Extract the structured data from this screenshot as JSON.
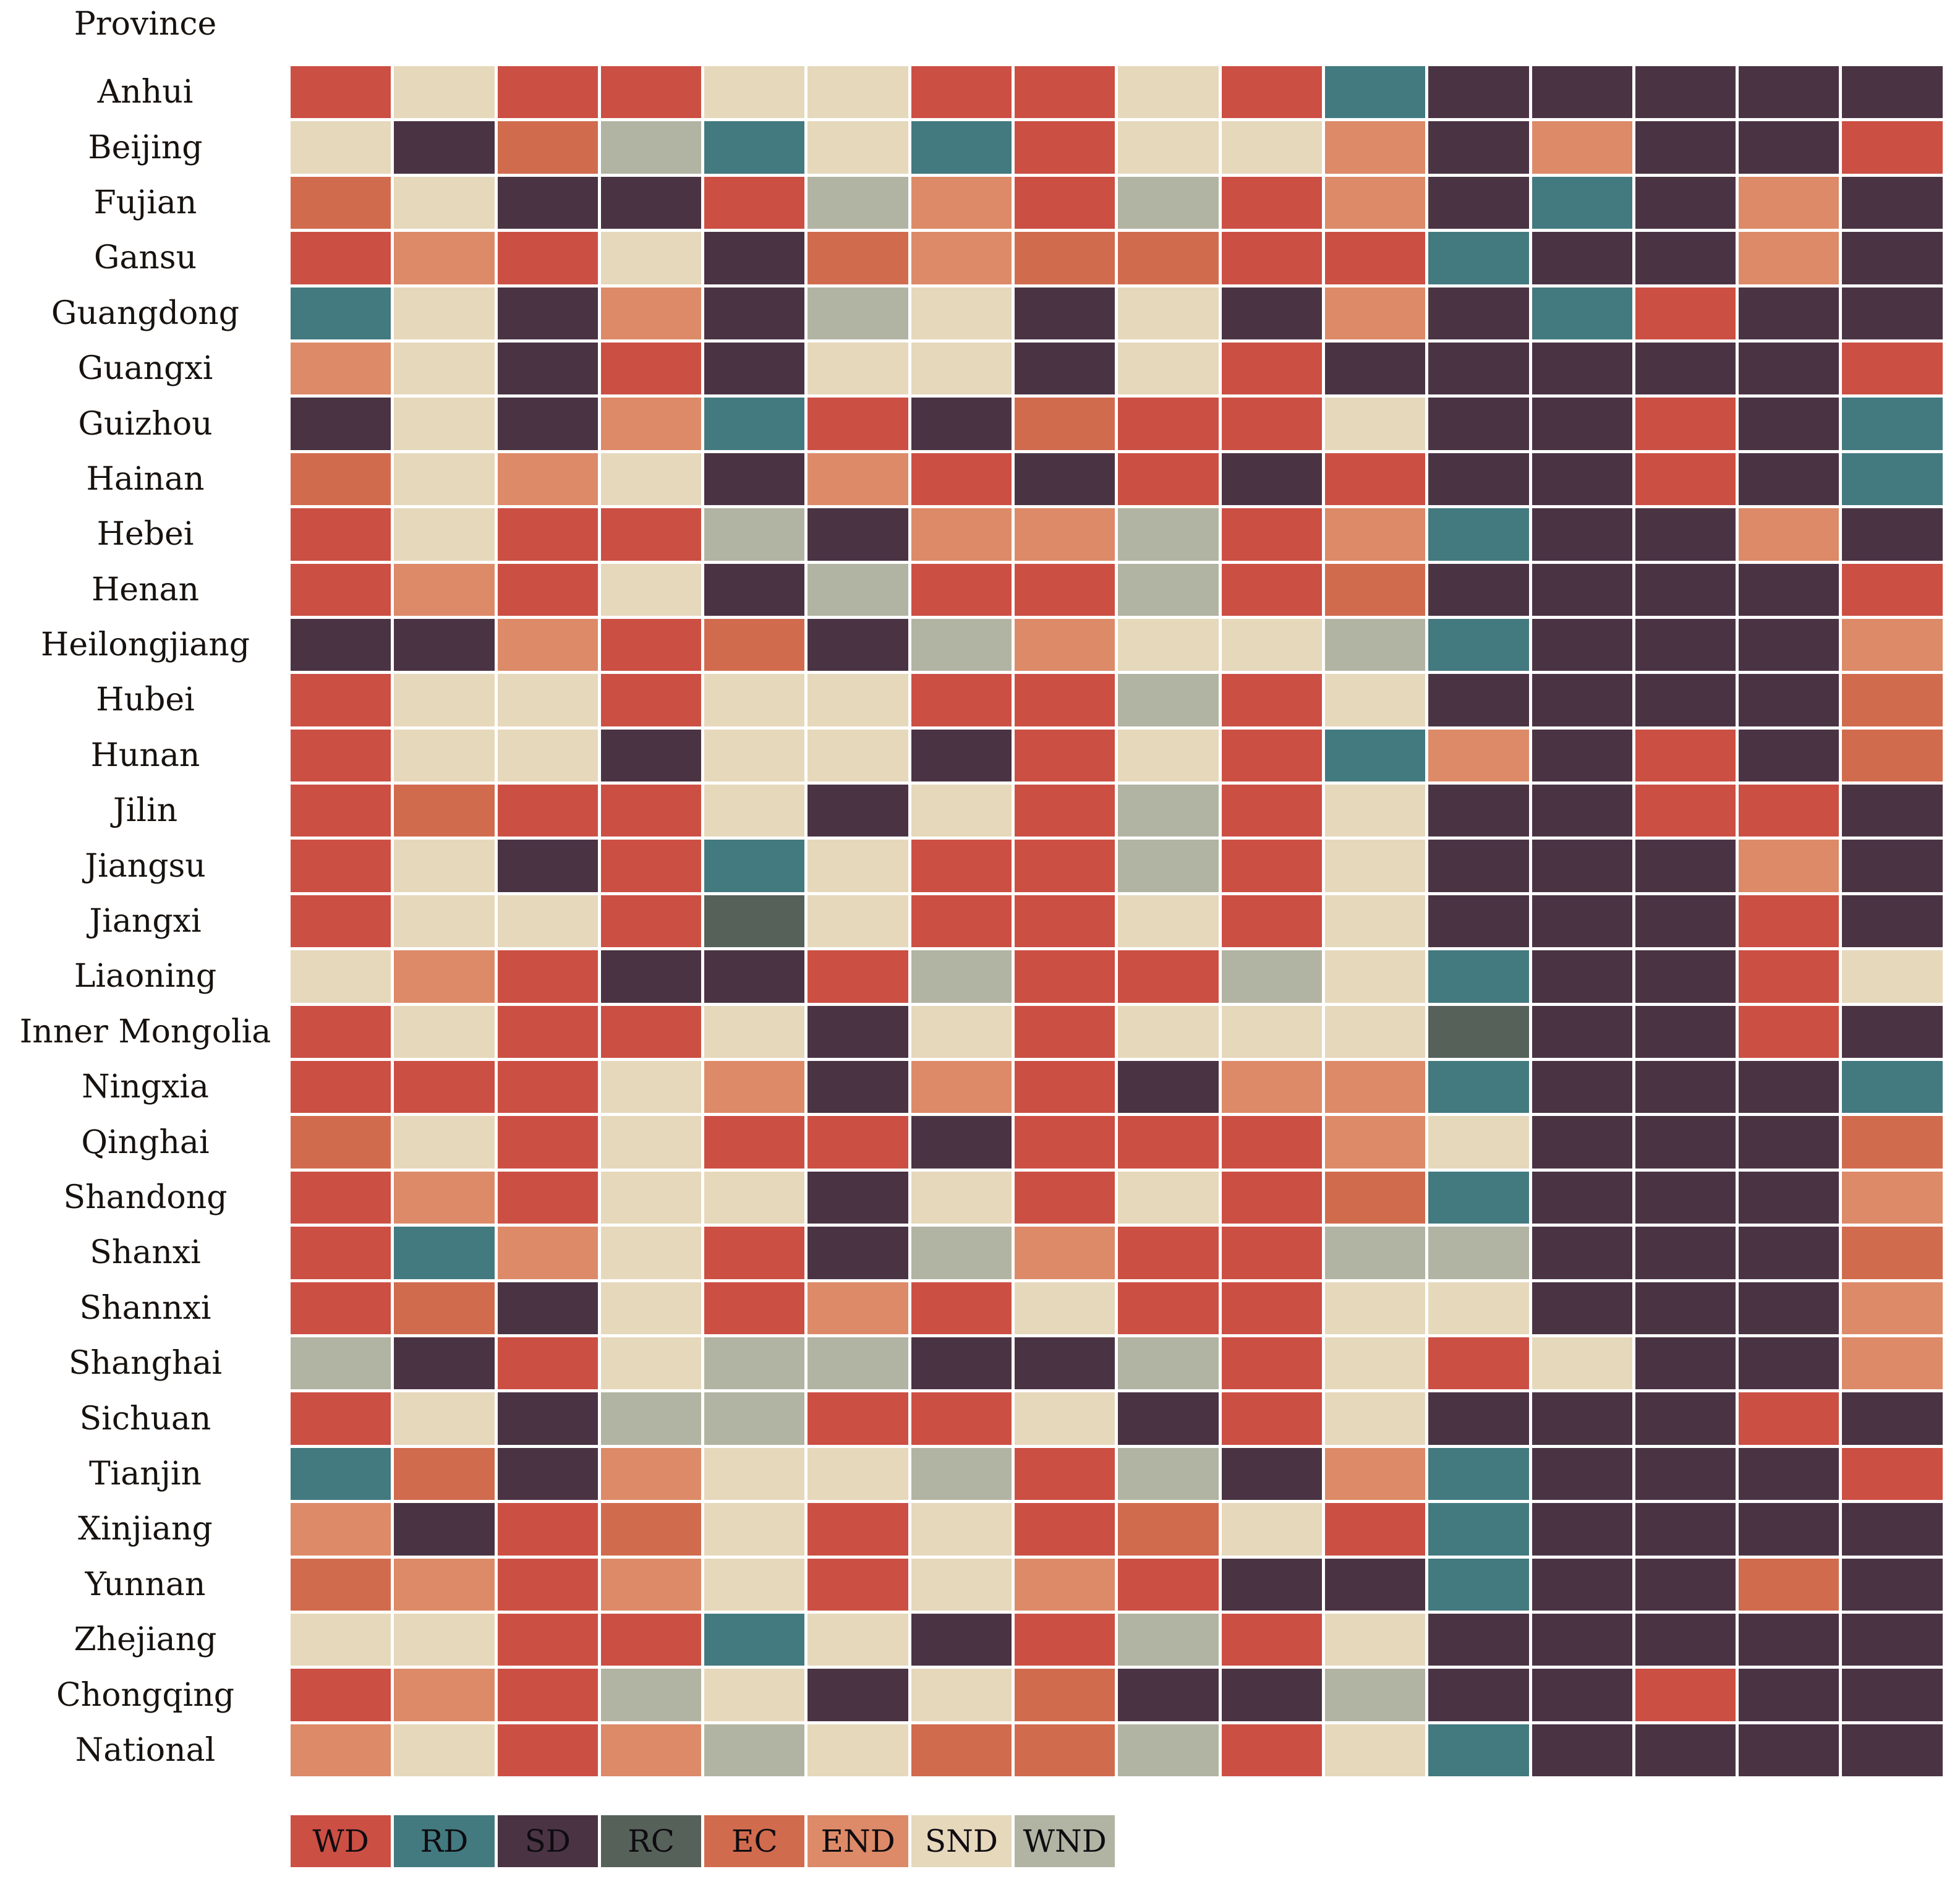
{
  "header": {
    "label": "Province"
  },
  "legend_items": [
    {
      "code": "WD",
      "color": "#cc4f44"
    },
    {
      "code": "RD",
      "color": "#427a80"
    },
    {
      "code": "SD",
      "color": "#4a3444"
    },
    {
      "code": "RC",
      "color": "#566159"
    },
    {
      "code": "EC",
      "color": "#d16b4e"
    },
    {
      "code": "END",
      "color": "#dd8a68"
    },
    {
      "code": "SND",
      "color": "#e6d8bb"
    },
    {
      "code": "WND",
      "color": "#b1b4a2"
    }
  ],
  "chart_data": {
    "type": "heatmap",
    "title": "",
    "row_label_header": "Province",
    "legend_position": "bottom",
    "grid": "off",
    "column_count": 16,
    "legend_order": [
      "WD",
      "RD",
      "SD",
      "RC",
      "EC",
      "END",
      "SND",
      "WND"
    ],
    "categories": {
      "WD": "#cc4f44",
      "RD": "#427a80",
      "SD": "#4a3444",
      "RC": "#566159",
      "EC": "#d16b4e",
      "END": "#dd8a68",
      "SND": "#e6d8bb",
      "WND": "#b1b4a2"
    },
    "rows": [
      "Anhui",
      "Beijing",
      "Fujian",
      "Gansu",
      "Guangdong",
      "Guangxi",
      "Guizhou",
      "Hainan",
      "Hebei",
      "Henan",
      "Heilongjiang",
      "Hubei",
      "Hunan",
      "Jilin",
      "Jiangsu",
      "Jiangxi",
      "Liaoning",
      "Inner Mongolia",
      "Ningxia",
      "Qinghai",
      "Shandong",
      "Shanxi",
      "Shannxi",
      "Shanghai",
      "Sichuan",
      "Tianjin",
      "Xinjiang",
      "Yunnan",
      "Zhejiang",
      "Chongqing",
      "National"
    ],
    "matrix": [
      [
        "WD",
        "SND",
        "WD",
        "WD",
        "SND",
        "SND",
        "WD",
        "WD",
        "SND",
        "WD",
        "RD",
        "SD",
        "SD",
        "SD",
        "SD",
        "SD"
      ],
      [
        "SND",
        "SD",
        "EC",
        "WND",
        "RD",
        "SND",
        "RD",
        "WD",
        "SND",
        "SND",
        "END",
        "SD",
        "END",
        "SD",
        "SD",
        "WD"
      ],
      [
        "EC",
        "SND",
        "SD",
        "SD",
        "WD",
        "WND",
        "END",
        "WD",
        "WND",
        "WD",
        "END",
        "SD",
        "RD",
        "SD",
        "END",
        "SD"
      ],
      [
        "WD",
        "END",
        "WD",
        "SND",
        "SD",
        "EC",
        "END",
        "EC",
        "EC",
        "WD",
        "WD",
        "RD",
        "SD",
        "SD",
        "END",
        "SD"
      ],
      [
        "RD",
        "SND",
        "SD",
        "END",
        "SD",
        "WND",
        "SND",
        "SD",
        "SND",
        "SD",
        "END",
        "SD",
        "RD",
        "WD",
        "SD",
        "SD"
      ],
      [
        "END",
        "SND",
        "SD",
        "WD",
        "SD",
        "SND",
        "SND",
        "SD",
        "SND",
        "WD",
        "SD",
        "SD",
        "SD",
        "SD",
        "SD",
        "WD"
      ],
      [
        "SD",
        "SND",
        "SD",
        "END",
        "RD",
        "WD",
        "SD",
        "EC",
        "WD",
        "WD",
        "SND",
        "SD",
        "SD",
        "WD",
        "SD",
        "RD"
      ],
      [
        "EC",
        "SND",
        "END",
        "SND",
        "SD",
        "END",
        "WD",
        "SD",
        "WD",
        "SD",
        "WD",
        "SD",
        "SD",
        "WD",
        "SD",
        "RD"
      ],
      [
        "WD",
        "SND",
        "WD",
        "WD",
        "WND",
        "SD",
        "END",
        "END",
        "WND",
        "WD",
        "END",
        "RD",
        "SD",
        "SD",
        "END",
        "SD"
      ],
      [
        "WD",
        "END",
        "WD",
        "SND",
        "SD",
        "WND",
        "WD",
        "WD",
        "WND",
        "WD",
        "EC",
        "SD",
        "SD",
        "SD",
        "SD",
        "WD"
      ],
      [
        "SD",
        "SD",
        "END",
        "WD",
        "EC",
        "SD",
        "WND",
        "END",
        "SND",
        "SND",
        "WND",
        "RD",
        "SD",
        "SD",
        "SD",
        "END"
      ],
      [
        "WD",
        "SND",
        "SND",
        "WD",
        "SND",
        "SND",
        "WD",
        "WD",
        "WND",
        "WD",
        "SND",
        "SD",
        "SD",
        "SD",
        "SD",
        "EC"
      ],
      [
        "WD",
        "SND",
        "SND",
        "SD",
        "SND",
        "SND",
        "SD",
        "WD",
        "SND",
        "WD",
        "RD",
        "END",
        "SD",
        "WD",
        "SD",
        "EC"
      ],
      [
        "WD",
        "EC",
        "WD",
        "WD",
        "SND",
        "SD",
        "SND",
        "WD",
        "WND",
        "WD",
        "SND",
        "SD",
        "SD",
        "WD",
        "WD",
        "SD"
      ],
      [
        "WD",
        "SND",
        "SD",
        "WD",
        "RD",
        "SND",
        "WD",
        "WD",
        "WND",
        "WD",
        "SND",
        "SD",
        "SD",
        "SD",
        "END",
        "SD"
      ],
      [
        "WD",
        "SND",
        "SND",
        "WD",
        "RC",
        "SND",
        "WD",
        "WD",
        "SND",
        "WD",
        "SND",
        "SD",
        "SD",
        "SD",
        "WD",
        "SD"
      ],
      [
        "SND",
        "END",
        "WD",
        "SD",
        "SD",
        "WD",
        "WND",
        "WD",
        "WD",
        "WND",
        "SND",
        "RD",
        "SD",
        "SD",
        "WD",
        "SND"
      ],
      [
        "WD",
        "SND",
        "WD",
        "WD",
        "SND",
        "SD",
        "SND",
        "WD",
        "SND",
        "SND",
        "SND",
        "RC",
        "SD",
        "SD",
        "WD",
        "SD"
      ],
      [
        "WD",
        "WD",
        "WD",
        "SND",
        "END",
        "SD",
        "END",
        "WD",
        "SD",
        "END",
        "END",
        "RD",
        "SD",
        "SD",
        "SD",
        "RD"
      ],
      [
        "EC",
        "SND",
        "WD",
        "SND",
        "WD",
        "WD",
        "SD",
        "WD",
        "WD",
        "WD",
        "END",
        "SND",
        "SD",
        "SD",
        "SD",
        "EC"
      ],
      [
        "WD",
        "END",
        "WD",
        "SND",
        "SND",
        "SD",
        "SND",
        "WD",
        "SND",
        "WD",
        "EC",
        "RD",
        "SD",
        "SD",
        "SD",
        "END"
      ],
      [
        "WD",
        "RD",
        "END",
        "SND",
        "WD",
        "SD",
        "WND",
        "END",
        "WD",
        "WD",
        "WND",
        "WND",
        "SD",
        "SD",
        "SD",
        "EC"
      ],
      [
        "WD",
        "EC",
        "SD",
        "SND",
        "WD",
        "END",
        "WD",
        "SND",
        "WD",
        "WD",
        "SND",
        "SND",
        "SD",
        "SD",
        "SD",
        "END"
      ],
      [
        "WND",
        "SD",
        "WD",
        "SND",
        "WND",
        "WND",
        "SD",
        "SD",
        "WND",
        "WD",
        "SND",
        "WD",
        "SND",
        "SD",
        "SD",
        "END"
      ],
      [
        "WD",
        "SND",
        "SD",
        "WND",
        "WND",
        "WD",
        "WD",
        "SND",
        "SD",
        "WD",
        "SND",
        "SD",
        "SD",
        "SD",
        "WD",
        "SD"
      ],
      [
        "RD",
        "EC",
        "SD",
        "END",
        "SND",
        "SND",
        "WND",
        "WD",
        "WND",
        "SD",
        "END",
        "RD",
        "SD",
        "SD",
        "SD",
        "WD"
      ],
      [
        "END",
        "SD",
        "WD",
        "EC",
        "SND",
        "WD",
        "SND",
        "WD",
        "EC",
        "SND",
        "WD",
        "RD",
        "SD",
        "SD",
        "SD",
        "SD"
      ],
      [
        "EC",
        "END",
        "WD",
        "END",
        "SND",
        "WD",
        "SND",
        "END",
        "WD",
        "SD",
        "SD",
        "RD",
        "SD",
        "SD",
        "EC",
        "SD"
      ],
      [
        "SND",
        "SND",
        "WD",
        "WD",
        "RD",
        "SND",
        "SD",
        "WD",
        "WND",
        "WD",
        "SND",
        "SD",
        "SD",
        "SD",
        "SD",
        "SD"
      ],
      [
        "WD",
        "END",
        "WD",
        "WND",
        "SND",
        "SD",
        "SND",
        "EC",
        "SD",
        "SD",
        "WND",
        "SD",
        "SD",
        "WD",
        "SD",
        "SD"
      ],
      [
        "END",
        "SND",
        "WD",
        "END",
        "WND",
        "SND",
        "EC",
        "EC",
        "WND",
        "WD",
        "SND",
        "RD",
        "SD",
        "SD",
        "SD",
        "SD"
      ]
    ]
  }
}
